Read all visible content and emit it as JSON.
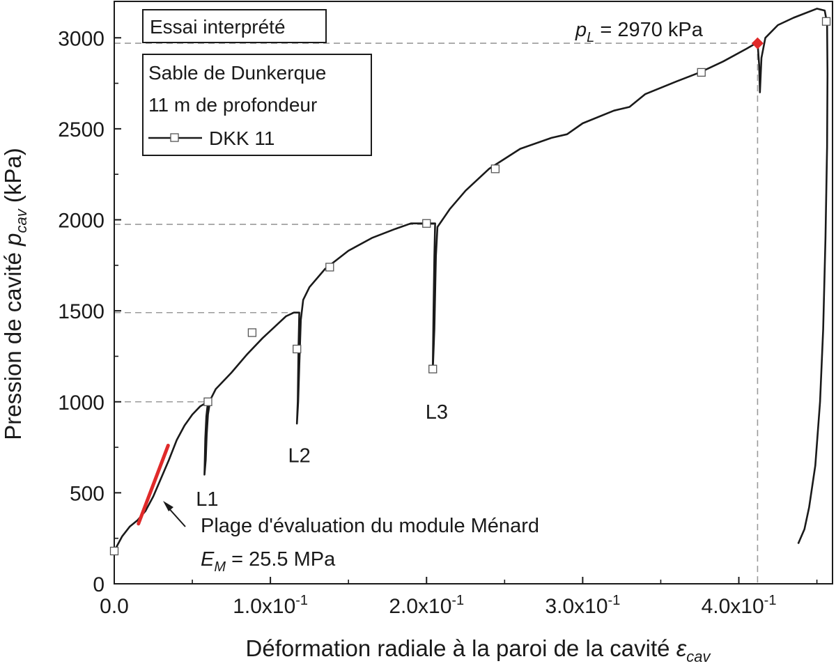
{
  "chart_data": {
    "type": "line",
    "title": "",
    "xlabel": "Déformation radiale à la paroi de la cavité",
    "xlabel_symbol": "ε",
    "xlabel_subscript": "cav",
    "ylabel": "Pression de cavité",
    "ylabel_symbol": "p",
    "ylabel_subscript": "cav",
    "ylabel_unit": "(kPa)",
    "xlim": [
      0.0,
      0.46
    ],
    "ylim": [
      0,
      3200
    ],
    "x_ticks": [
      {
        "value": 0.0,
        "mantissa": "0.0",
        "exp": ""
      },
      {
        "value": 0.1,
        "mantissa": "1.0x10",
        "exp": "-1"
      },
      {
        "value": 0.2,
        "mantissa": "2.0x10",
        "exp": "-1"
      },
      {
        "value": 0.3,
        "mantissa": "3.0x10",
        "exp": "-1"
      },
      {
        "value": 0.4,
        "mantissa": "4.0x10",
        "exp": "-1"
      }
    ],
    "y_ticks": [
      0,
      500,
      1000,
      1500,
      2000,
      2500,
      3000
    ],
    "grid": false,
    "legend_position": "top-left",
    "box_title": "Essai interprété",
    "legend_lines": [
      "Sable de Dunkerque",
      "11 m de profondeur"
    ],
    "series": [
      {
        "name": "DKK 11",
        "color": "#1a1a1a",
        "marker": "open-square",
        "points": [
          [
            0.0,
            180
          ],
          [
            0.005,
            260
          ],
          [
            0.01,
            315
          ],
          [
            0.015,
            350
          ],
          [
            0.02,
            400
          ],
          [
            0.025,
            480
          ],
          [
            0.03,
            580
          ],
          [
            0.035,
            680
          ],
          [
            0.04,
            790
          ],
          [
            0.045,
            870
          ],
          [
            0.05,
            930
          ],
          [
            0.055,
            975
          ],
          [
            0.058,
            990
          ],
          [
            0.06,
            1000
          ],
          [
            0.059,
            920
          ],
          [
            0.0583,
            800
          ],
          [
            0.0578,
            600
          ],
          [
            0.0586,
            680
          ],
          [
            0.0592,
            820
          ],
          [
            0.06,
            930
          ],
          [
            0.0615,
            1010
          ],
          [
            0.065,
            1070
          ],
          [
            0.075,
            1160
          ],
          [
            0.085,
            1260
          ],
          [
            0.095,
            1350
          ],
          [
            0.105,
            1430
          ],
          [
            0.11,
            1470
          ],
          [
            0.115,
            1490
          ],
          [
            0.1185,
            1490
          ],
          [
            0.118,
            1300
          ],
          [
            0.1175,
            1000
          ],
          [
            0.117,
            880
          ],
          [
            0.1178,
            1000
          ],
          [
            0.1185,
            1200
          ],
          [
            0.1195,
            1450
          ],
          [
            0.121,
            1560
          ],
          [
            0.125,
            1630
          ],
          [
            0.135,
            1730
          ],
          [
            0.15,
            1830
          ],
          [
            0.165,
            1900
          ],
          [
            0.18,
            1950
          ],
          [
            0.19,
            1980
          ],
          [
            0.2,
            1980
          ],
          [
            0.2055,
            1980
          ],
          [
            0.205,
            1800
          ],
          [
            0.2045,
            1500
          ],
          [
            0.204,
            1170
          ],
          [
            0.205,
            1400
          ],
          [
            0.206,
            1800
          ],
          [
            0.207,
            1960
          ],
          [
            0.215,
            2060
          ],
          [
            0.225,
            2160
          ],
          [
            0.24,
            2280
          ],
          [
            0.26,
            2390
          ],
          [
            0.28,
            2450
          ],
          [
            0.29,
            2470
          ],
          [
            0.3,
            2530
          ],
          [
            0.32,
            2600
          ],
          [
            0.33,
            2620
          ],
          [
            0.34,
            2690
          ],
          [
            0.36,
            2760
          ],
          [
            0.375,
            2810
          ],
          [
            0.39,
            2870
          ],
          [
            0.405,
            2940
          ],
          [
            0.412,
            2975
          ],
          [
            0.413,
            2850
          ],
          [
            0.4135,
            2700
          ],
          [
            0.4145,
            2890
          ],
          [
            0.417,
            3000
          ],
          [
            0.425,
            3070
          ],
          [
            0.435,
            3110
          ],
          [
            0.45,
            3160
          ],
          [
            0.455,
            3150
          ],
          [
            0.4565,
            3080
          ],
          [
            0.4568,
            2800
          ],
          [
            0.4565,
            2400
          ],
          [
            0.4555,
            1900
          ],
          [
            0.454,
            1400
          ],
          [
            0.452,
            1000
          ],
          [
            0.449,
            650
          ],
          [
            0.445,
            420
          ],
          [
            0.442,
            300
          ],
          [
            0.438,
            220
          ]
        ],
        "markers": [
          [
            0.0,
            180
          ],
          [
            0.06,
            1000
          ],
          [
            0.0883,
            1380
          ],
          [
            0.117,
            1290
          ],
          [
            0.138,
            1740
          ],
          [
            0.2,
            1980
          ],
          [
            0.204,
            1180
          ],
          [
            0.244,
            2280
          ],
          [
            0.376,
            2810
          ],
          [
            0.456,
            3090
          ]
        ]
      }
    ],
    "em_range": {
      "color": "#e02a2a",
      "points": [
        [
          0.0155,
          330
        ],
        [
          0.0345,
          760
        ]
      ],
      "label_line1": "Plage d'évaluation du module Ménard",
      "label_symbol": "E",
      "label_subscript": "M",
      "label_value": " = 25.5 MPa"
    },
    "unloading_labels": [
      {
        "text": "L1",
        "x": 0.0595,
        "y": 520
      },
      {
        "text": "L2",
        "x": 0.1185,
        "y": 760
      },
      {
        "text": "L3",
        "x": 0.2065,
        "y": 1000
      }
    ],
    "reference_lines_y": [
      1000,
      1490,
      1975,
      2970
    ],
    "limit_pressure": {
      "x": 0.412,
      "y": 2970,
      "color": "#e02a2a",
      "symbol": "p",
      "subscript": "L",
      "value_text": " = 2970 kPa"
    }
  }
}
